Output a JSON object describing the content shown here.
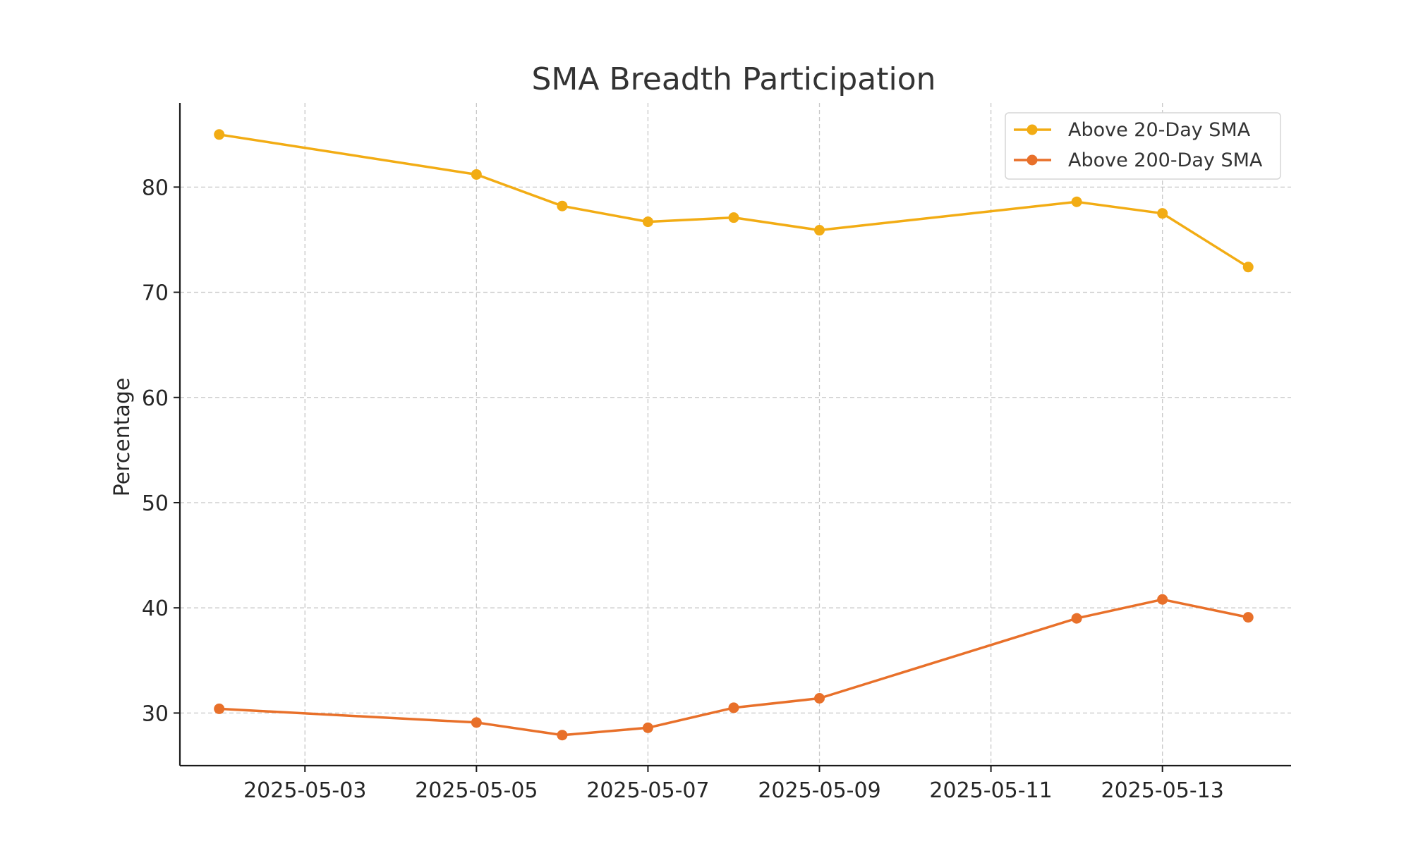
{
  "chart_data": {
    "type": "line",
    "title": "SMA Breadth Participation",
    "xlabel": "",
    "ylabel": "Percentage",
    "x": [
      "2025-05-02",
      "2025-05-05",
      "2025-05-06",
      "2025-05-07",
      "2025-05-08",
      "2025-05-09",
      "2025-05-12",
      "2025-05-13",
      "2025-05-14"
    ],
    "x_ticks": [
      "2025-05-03",
      "2025-05-05",
      "2025-05-07",
      "2025-05-09",
      "2025-05-11",
      "2025-05-13"
    ],
    "xlim": [
      "2025-05-01T13:00",
      "2025-05-14T12:00"
    ],
    "y_ticks": [
      30,
      40,
      50,
      60,
      70,
      80
    ],
    "ylim": [
      25,
      88
    ],
    "grid": true,
    "legend_position": "top-right",
    "series": [
      {
        "name": "Above 20-Day SMA",
        "color": "#f2ac14",
        "values": [
          85.0,
          81.2,
          78.2,
          76.7,
          77.1,
          75.9,
          78.6,
          77.5,
          72.4
        ]
      },
      {
        "name": "Above 200-Day SMA",
        "color": "#e8702a",
        "values": [
          30.4,
          29.1,
          27.9,
          28.6,
          30.5,
          31.4,
          39.0,
          40.8,
          39.1
        ]
      }
    ]
  }
}
